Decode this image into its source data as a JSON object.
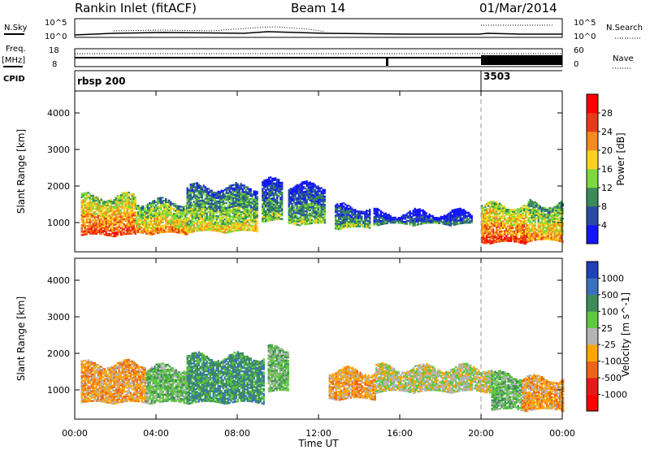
{
  "header": {
    "station": "Rankin Inlet (fitACF)",
    "beam": "Beam 14",
    "date": "01/Mar/2014"
  },
  "status_panels": {
    "nsky_label": "N.Sky",
    "nsearch_label": "N.Search",
    "freq_label_line1": "Freq.",
    "freq_label_line2": "[MHz]",
    "nave_label": "Nave",
    "cpid_label": "CPID",
    "nsky_ticks": [
      "10^5",
      "10^0"
    ],
    "nsearch_ticks": [
      "10^5",
      "10^0"
    ],
    "freq_ticks": [
      "18",
      "8"
    ],
    "nave_ticks": [
      "60",
      "0"
    ],
    "cpid_segments": [
      {
        "start_hour": 0.0,
        "label": "rbsp 200"
      },
      {
        "start_hour": 20.0,
        "label": "3503"
      }
    ]
  },
  "x_axis": {
    "label": "Time UT",
    "ticks": [
      "00:00",
      "04:00",
      "08:00",
      "12:00",
      "16:00",
      "20:00",
      "00:00"
    ],
    "range_hours": [
      0,
      24
    ]
  },
  "chart_data": [
    {
      "type": "heatmap",
      "panel": "power",
      "ylabel": "Slant Range [km]",
      "yticks": [
        1000,
        2000,
        3000,
        4000
      ],
      "ylim": [
        200,
        4600
      ],
      "xlim": [
        0,
        24
      ],
      "colorbar": {
        "label": "Power [dB]",
        "ticks": [
          "4",
          "8",
          "12",
          "16",
          "20",
          "24",
          "28"
        ],
        "colors": [
          "#1414ff",
          "#2a4aa8",
          "#3a8a5a",
          "#7cd83c",
          "#ffd21e",
          "#f58a1e",
          "#e83a18",
          "#ff0000"
        ]
      },
      "regions": [
        {
          "t0": 0.3,
          "t1": 3.0,
          "r_low": 600,
          "r_high": 1700,
          "level": 6
        },
        {
          "t0": 3.0,
          "t1": 5.5,
          "r_low": 650,
          "r_high": 1550,
          "level": 5
        },
        {
          "t0": 5.5,
          "t1": 9.0,
          "r_low": 700,
          "r_high": 1950,
          "level": 4
        },
        {
          "t0": 9.2,
          "t1": 10.2,
          "r_low": 1000,
          "r_high": 2100,
          "level": 3
        },
        {
          "t0": 10.5,
          "t1": 12.3,
          "r_low": 900,
          "r_high": 2000,
          "level": 3
        },
        {
          "t0": 12.8,
          "t1": 14.5,
          "r_low": 800,
          "r_high": 1400,
          "level": 3
        },
        {
          "t0": 14.7,
          "t1": 19.5,
          "r_low": 900,
          "r_high": 1250,
          "level": 2
        },
        {
          "t0": 20.0,
          "t1": 22.3,
          "r_low": 400,
          "r_high": 1450,
          "level": 6
        },
        {
          "t0": 22.3,
          "t1": 24.0,
          "r_low": 450,
          "r_high": 1500,
          "level": 5
        }
      ]
    },
    {
      "type": "heatmap",
      "panel": "velocity",
      "ylabel": "Slant Range [km]",
      "yticks": [
        1000,
        2000,
        3000,
        4000
      ],
      "ylim": [
        200,
        4600
      ],
      "xlim": [
        0,
        24
      ],
      "colorbar": {
        "label": "Velocity [m s^-1]",
        "ticks": [
          "1000",
          "500",
          "100",
          "25",
          "-25",
          "-100",
          "-500",
          "-1000"
        ],
        "colors": [
          "#2040b8",
          "#3a72c0",
          "#3c8c5a",
          "#5ec83e",
          "#b4b4b4",
          "#ffa500",
          "#f06418",
          "#e81818",
          "#ff0000"
        ]
      },
      "regions": [
        {
          "t0": 0.3,
          "t1": 3.5,
          "r_low": 600,
          "r_high": 1700,
          "level": 5
        },
        {
          "t0": 3.5,
          "t1": 5.5,
          "r_low": 600,
          "r_high": 1600,
          "level": 3
        },
        {
          "t0": 5.5,
          "t1": 9.3,
          "r_low": 600,
          "r_high": 1900,
          "level": 2
        },
        {
          "t0": 9.5,
          "t1": 10.5,
          "r_low": 900,
          "r_high": 2100,
          "level": 3
        },
        {
          "t0": 12.5,
          "t1": 14.8,
          "r_low": 700,
          "r_high": 1500,
          "level": 5
        },
        {
          "t0": 14.8,
          "t1": 20.5,
          "r_low": 900,
          "r_high": 1600,
          "level": 4
        },
        {
          "t0": 20.5,
          "t1": 22.0,
          "r_low": 400,
          "r_high": 1400,
          "level": 3
        },
        {
          "t0": 22.0,
          "t1": 24.0,
          "r_low": 400,
          "r_high": 1300,
          "level": 5
        }
      ]
    }
  ]
}
